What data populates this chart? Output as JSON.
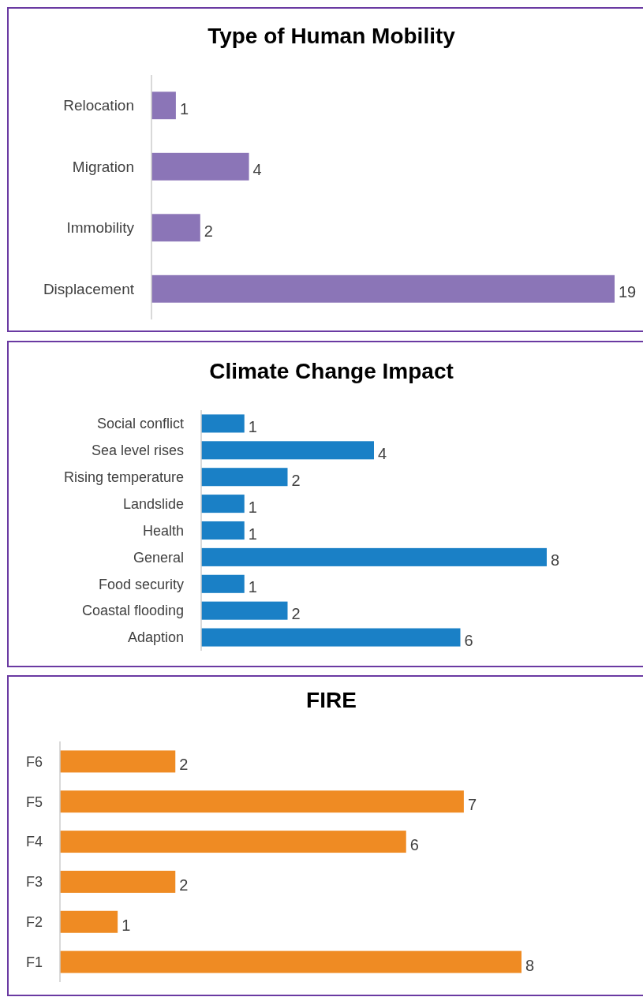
{
  "chart_data": [
    {
      "type": "bar",
      "orientation": "horizontal",
      "title": "Type of Human Mobility",
      "categories": [
        "Relocation",
        "Migration",
        "Immobility",
        "Displacement"
      ],
      "values": [
        1,
        4,
        2,
        19
      ],
      "color": "#8b75b7",
      "data_labels": true
    },
    {
      "type": "bar",
      "orientation": "horizontal",
      "title": "Climate Change Impact",
      "categories": [
        "Social conflict",
        "Sea level rises",
        "Rising temperature",
        "Landslide",
        "Health",
        "General",
        "Food security",
        "Coastal flooding",
        "Adaption"
      ],
      "values": [
        1,
        4,
        2,
        1,
        1,
        8,
        1,
        2,
        6
      ],
      "color": "#1a80c6",
      "data_labels": true
    },
    {
      "type": "bar",
      "orientation": "horizontal",
      "title": "FIRE",
      "categories": [
        "F6",
        "F5",
        "F4",
        "F3",
        "F2",
        "F1"
      ],
      "values": [
        2,
        7,
        6,
        2,
        1,
        8
      ],
      "color": "#ef8b23",
      "data_labels": true
    }
  ]
}
